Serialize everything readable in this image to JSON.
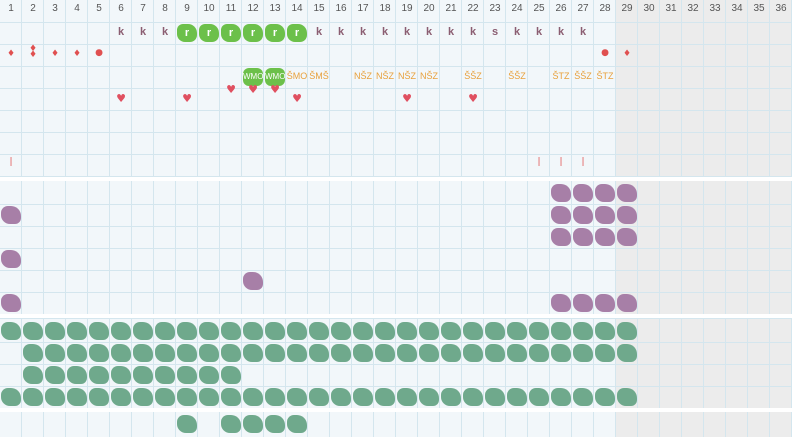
{
  "columns": [
    "1",
    "2",
    "3",
    "4",
    "5",
    "6",
    "7",
    "8",
    "9",
    "10",
    "11",
    "12",
    "13",
    "14",
    "15",
    "16",
    "17",
    "18",
    "19",
    "20",
    "21",
    "22",
    "23",
    "24",
    "25",
    "26",
    "27",
    "28",
    "29",
    "30",
    "31",
    "32",
    "33",
    "34",
    "35",
    "36"
  ],
  "row_k": [
    {
      "col": 6,
      "label": "k"
    },
    {
      "col": 7,
      "label": "k"
    },
    {
      "col": 8,
      "label": "k"
    },
    {
      "col": 15,
      "label": "k"
    },
    {
      "col": 16,
      "label": "k"
    },
    {
      "col": 17,
      "label": "k"
    },
    {
      "col": 18,
      "label": "k"
    },
    {
      "col": 19,
      "label": "k"
    },
    {
      "col": 20,
      "label": "k"
    },
    {
      "col": 21,
      "label": "k"
    },
    {
      "col": 22,
      "label": "k"
    },
    {
      "col": 23,
      "label": "s"
    },
    {
      "col": 24,
      "label": "k"
    },
    {
      "col": 25,
      "label": "k"
    },
    {
      "col": 26,
      "label": "k"
    },
    {
      "col": 27,
      "label": "k"
    }
  ],
  "row_r": [
    {
      "col": 9,
      "label": "r"
    },
    {
      "col": 10,
      "label": "r"
    },
    {
      "col": 11,
      "label": "r"
    },
    {
      "col": 12,
      "label": "r"
    },
    {
      "col": 13,
      "label": "r"
    },
    {
      "col": 14,
      "label": "r"
    }
  ],
  "row_codes": [
    {
      "col": 12,
      "label": "WMO",
      "style": "lime"
    },
    {
      "col": 13,
      "label": "WMO",
      "style": "lime"
    },
    {
      "col": 14,
      "label": "ŠMO",
      "style": "text"
    },
    {
      "col": 15,
      "label": "ŠMŠ",
      "style": "text"
    },
    {
      "col": 17,
      "label": "NŠZ",
      "style": "text"
    },
    {
      "col": 18,
      "label": "NŠZ",
      "style": "text"
    },
    {
      "col": 19,
      "label": "NŠZ",
      "style": "text"
    },
    {
      "col": 20,
      "label": "NŠZ",
      "style": "text"
    },
    {
      "col": 22,
      "label": "ŠŠZ",
      "style": "text"
    },
    {
      "col": 24,
      "label": "ŠŠZ",
      "style": "text"
    },
    {
      "col": 26,
      "label": "ŠTZ",
      "style": "text"
    },
    {
      "col": 27,
      "label": "ŠŠZ",
      "style": "text"
    },
    {
      "col": 28,
      "label": "ŠTZ",
      "style": "text"
    }
  ],
  "colors": {
    "green": "#6fa98c",
    "purple": "#a77fa7",
    "lime": "#6cc04a",
    "k": "#8b5e72",
    "code": "#e8a03a",
    "red": "#e05050"
  }
}
